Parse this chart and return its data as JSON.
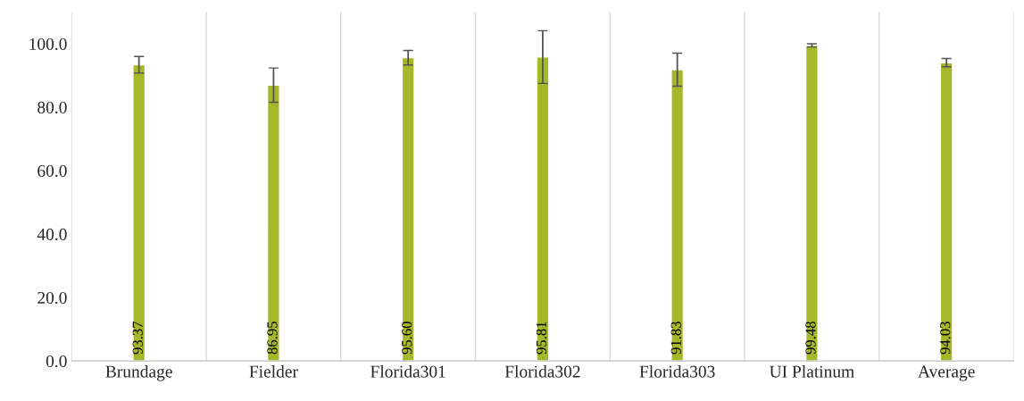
{
  "chart_data": {
    "type": "bar",
    "categories": [
      "Brundage",
      "Fielder",
      "Florida301",
      "Florida302",
      "Florida303",
      "UI Platinum",
      "Average"
    ],
    "values": [
      93.37,
      86.95,
      95.6,
      95.81,
      91.83,
      99.48,
      94.03
    ],
    "errors": [
      2.6,
      5.4,
      2.3,
      8.3,
      5.2,
      0.5,
      1.3
    ],
    "value_labels": [
      "93.37",
      "86.95",
      "95.60",
      "95.81",
      "91.83",
      "99.48",
      "94.03"
    ],
    "color": "#a5b82a",
    "ylim": [
      0,
      110
    ],
    "yticks": [
      {
        "value": 0,
        "label": "0.0"
      },
      {
        "value": 20,
        "label": "20.0"
      },
      {
        "value": 40,
        "label": "40.0"
      },
      {
        "value": 60,
        "label": "60.0"
      },
      {
        "value": 80,
        "label": "80.0"
      },
      {
        "value": 100,
        "label": "100.0"
      }
    ],
    "grid": "x"
  }
}
